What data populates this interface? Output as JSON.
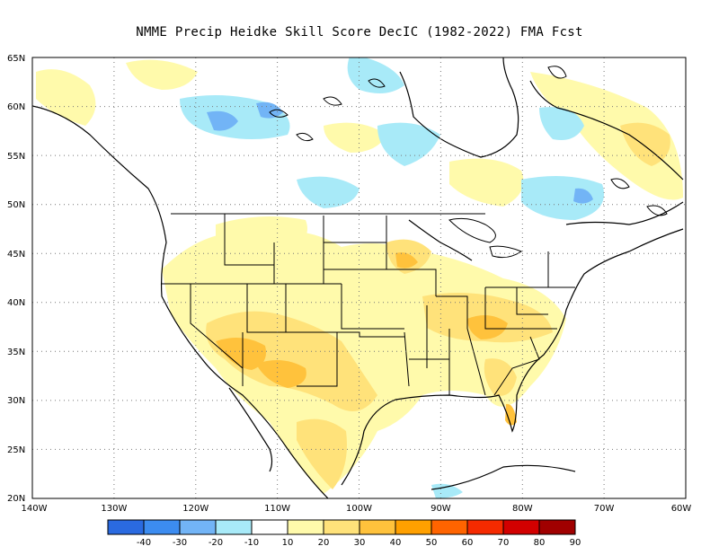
{
  "title": "NMME Precip Heidke Skill Score DecIC (1982-2022) FMA Fcst",
  "map": {
    "lat_ticks": [
      "65N",
      "60N",
      "55N",
      "50N",
      "45N",
      "40N",
      "35N",
      "30N",
      "25N",
      "20N"
    ],
    "lon_ticks": [
      "140W",
      "130W",
      "120W",
      "110W",
      "100W",
      "90W",
      "80W",
      "70W",
      "60W"
    ],
    "extent": {
      "lon_min": -140,
      "lon_max": -60,
      "lat_min": 20,
      "lat_max": 65
    },
    "gridlines": "dotted"
  },
  "colorbar": {
    "labels": [
      "-40",
      "-30",
      "-20",
      "-10",
      "10",
      "20",
      "30",
      "40",
      "50",
      "60",
      "70",
      "80",
      "90"
    ],
    "colors": [
      "#2a6ae0",
      "#3c8cf0",
      "#72b4f6",
      "#a8eaf8",
      "#ffffff",
      "#fffaab",
      "#ffe27a",
      "#ffc23c",
      "#ffa000",
      "#ff6400",
      "#f52a00",
      "#d20000",
      "#a00000"
    ]
  },
  "chart_data": {
    "type": "heatmap",
    "variable": "Precip Heidke Skill Score",
    "title": "NMME Precip Heidke Skill Score DecIC (1982-2022) FMA Fcst",
    "contour_levels": [
      -40,
      -30,
      -20,
      -10,
      10,
      20,
      30,
      40,
      50,
      60,
      70,
      80,
      90
    ],
    "features": [
      {
        "lon": -108,
        "lat": 34,
        "value": 40
      },
      {
        "lon": -113,
        "lat": 32,
        "value": 40
      },
      {
        "lon": -85,
        "lat": 37,
        "value": 40
      },
      {
        "lon": -81,
        "lat": 28,
        "value": 40
      },
      {
        "lon": -95,
        "lat": 44,
        "value": 30
      },
      {
        "lon": -101,
        "lat": 31,
        "value": 30
      },
      {
        "lon": -100,
        "lat": 25,
        "value": 30
      },
      {
        "lon": -62,
        "lat": 56,
        "value": 30
      },
      {
        "lon": -118,
        "lat": 58,
        "value": -20
      },
      {
        "lon": -110,
        "lat": 58,
        "value": -20
      },
      {
        "lon": -91,
        "lat": 56,
        "value": -20
      },
      {
        "lon": -68,
        "lat": 51,
        "value": -20
      }
    ]
  }
}
